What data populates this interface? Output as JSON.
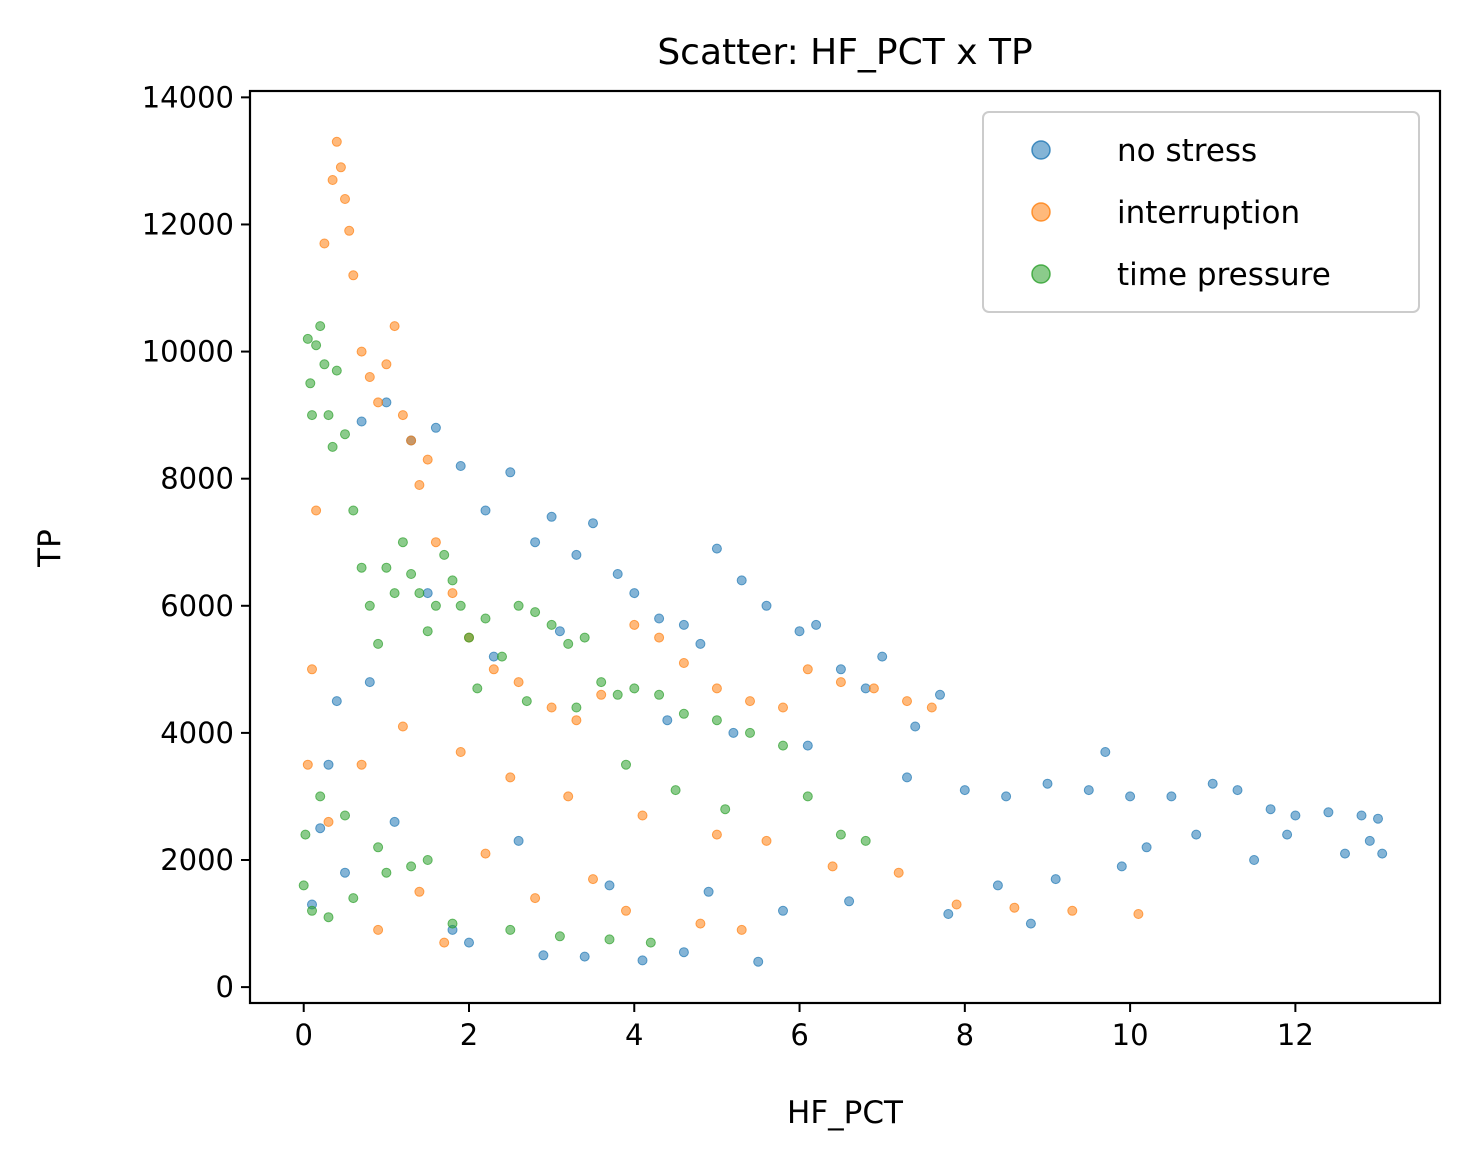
{
  "chart_data": {
    "type": "scatter",
    "title": "Scatter: HF_PCT x TP",
    "xlabel": "HF_PCT",
    "ylabel": "TP",
    "xlim": [
      -0.65,
      13.75
    ],
    "ylim": [
      -250,
      14100
    ],
    "xticks": [
      0,
      2,
      4,
      6,
      8,
      10,
      12
    ],
    "yticks": [
      0,
      2000,
      4000,
      6000,
      8000,
      10000,
      12000,
      14000
    ],
    "grid": false,
    "legend_position": "top-right",
    "series": [
      {
        "name": "no stress",
        "color": "#1f77b4",
        "x": [
          0.1,
          0.2,
          0.4,
          0.7,
          1.0,
          1.3,
          1.6,
          1.9,
          2.2,
          2.5,
          2.8,
          3.0,
          3.3,
          3.5,
          3.8,
          4.0,
          4.3,
          4.6,
          4.8,
          5.0,
          5.3,
          5.6,
          6.0,
          6.2,
          6.5,
          6.8,
          7.0,
          7.4,
          7.7,
          8.0,
          8.5,
          9.0,
          9.5,
          9.7,
          10.0,
          10.5,
          11.0,
          11.3,
          11.7,
          12.0,
          12.4,
          12.8,
          13.0,
          0.3,
          0.8,
          1.5,
          2.3,
          3.1,
          4.4,
          5.2,
          6.1,
          7.3,
          8.4,
          9.1,
          10.2,
          11.5,
          12.6,
          13.05,
          1.1,
          2.6,
          3.7,
          4.9,
          5.8,
          6.6,
          7.8,
          8.8,
          9.9,
          10.8,
          11.9,
          12.9,
          0.5,
          1.8,
          2.9,
          4.1,
          5.5,
          4.6,
          3.4,
          2.0
        ],
        "y": [
          1300,
          2500,
          4500,
          8900,
          9200,
          8600,
          8800,
          8200,
          7500,
          8100,
          7000,
          7400,
          6800,
          7300,
          6500,
          6200,
          5800,
          5700,
          5400,
          6900,
          6400,
          6000,
          5600,
          5700,
          5000,
          4700,
          5200,
          4100,
          4600,
          3100,
          3000,
          3200,
          3100,
          3700,
          3000,
          3000,
          3200,
          3100,
          2800,
          2700,
          2750,
          2700,
          2650,
          3500,
          4800,
          6200,
          5200,
          5600,
          4200,
          4000,
          3800,
          3300,
          1600,
          1700,
          2200,
          2000,
          2100,
          2100,
          2600,
          2300,
          1600,
          1500,
          1200,
          1350,
          1150,
          1000,
          1900,
          2400,
          2400,
          2300,
          1800,
          900,
          500,
          420,
          400,
          550,
          480,
          700
        ]
      },
      {
        "name": "interruption",
        "color": "#ff7f0e",
        "x": [
          0.05,
          0.1,
          0.15,
          0.25,
          0.35,
          0.4,
          0.45,
          0.5,
          0.55,
          0.6,
          0.7,
          0.8,
          0.9,
          1.0,
          1.1,
          1.2,
          1.3,
          1.4,
          1.5,
          1.6,
          1.8,
          2.0,
          2.3,
          2.6,
          3.0,
          3.3,
          3.6,
          4.0,
          4.3,
          4.6,
          5.0,
          5.4,
          5.8,
          6.1,
          6.5,
          6.9,
          7.3,
          7.6,
          0.3,
          0.7,
          1.2,
          1.9,
          2.5,
          3.2,
          4.1,
          5.0,
          5.6,
          6.4,
          7.2,
          7.9,
          8.6,
          9.3,
          10.1,
          0.9,
          1.7,
          2.8,
          3.9,
          4.8,
          5.3,
          3.5,
          2.2,
          1.4
        ],
        "y": [
          3500,
          5000,
          7500,
          11700,
          12700,
          13300,
          12900,
          12400,
          11900,
          11200,
          10000,
          9600,
          9200,
          9800,
          10400,
          9000,
          8600,
          7900,
          8300,
          7000,
          6200,
          5500,
          5000,
          4800,
          4400,
          4200,
          4600,
          5700,
          5500,
          5100,
          4700,
          4500,
          4400,
          5000,
          4800,
          4700,
          4500,
          4400,
          2600,
          3500,
          4100,
          3700,
          3300,
          3000,
          2700,
          2400,
          2300,
          1900,
          1800,
          1300,
          1250,
          1200,
          1150,
          900,
          700,
          1400,
          1200,
          1000,
          900,
          1700,
          2100,
          1500
        ]
      },
      {
        "name": "time pressure",
        "color": "#2ca02c",
        "x": [
          0.0,
          0.02,
          0.05,
          0.08,
          0.1,
          0.15,
          0.2,
          0.25,
          0.3,
          0.35,
          0.4,
          0.5,
          0.6,
          0.7,
          0.8,
          0.9,
          1.0,
          1.1,
          1.2,
          1.3,
          1.4,
          1.5,
          1.6,
          1.7,
          1.8,
          1.9,
          2.0,
          2.2,
          2.4,
          2.6,
          2.8,
          3.0,
          3.2,
          3.4,
          3.6,
          3.8,
          4.0,
          4.3,
          4.6,
          5.0,
          5.4,
          5.8,
          6.1,
          6.5,
          6.8,
          0.1,
          0.3,
          0.6,
          1.0,
          1.5,
          2.1,
          2.7,
          3.3,
          3.9,
          4.5,
          5.1,
          0.2,
          0.5,
          0.9,
          1.3,
          1.8,
          2.5,
          3.1,
          3.7,
          4.2
        ],
        "y": [
          1600,
          2400,
          10200,
          9500,
          9000,
          10100,
          10400,
          9800,
          9000,
          8500,
          9700,
          8700,
          7500,
          6600,
          6000,
          5400,
          6600,
          6200,
          7000,
          6500,
          6200,
          5600,
          6000,
          6800,
          6400,
          6000,
          5500,
          5800,
          5200,
          6000,
          5900,
          5700,
          5400,
          5500,
          4800,
          4600,
          4700,
          4600,
          4300,
          4200,
          4000,
          3800,
          3000,
          2400,
          2300,
          1200,
          1100,
          1400,
          1800,
          2000,
          4700,
          4500,
          4400,
          3500,
          3100,
          2800,
          3000,
          2700,
          2200,
          1900,
          1000,
          900,
          800,
          750,
          700
        ]
      }
    ]
  }
}
